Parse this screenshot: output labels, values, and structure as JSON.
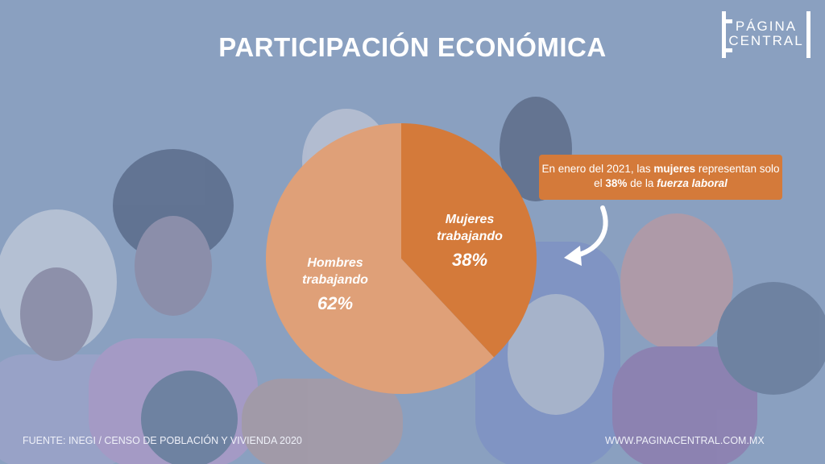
{
  "title": "PARTICIPACIÓN ECONÓMICA",
  "logo": {
    "line1": "PÁGINA",
    "line2": "CENTRAL"
  },
  "callout": {
    "part1": "En enero del 2021, las ",
    "bold1": "mujeres",
    "part2": " representan solo el ",
    "bold2": "38%",
    "part3": " de la ",
    "bolditalic": "fuerza laboral"
  },
  "colors": {
    "background": "#8aa0c0",
    "mujeres": "#d47a3a",
    "hombres": "#dfa078",
    "callout": "#d47a3a"
  },
  "chart_data": {
    "type": "pie",
    "slices": [
      {
        "label_line1": "Mujeres",
        "label_line2": "trabajando",
        "value": 38,
        "value_label": "38%",
        "color": "#d47a3a"
      },
      {
        "label_line1": "Hombres",
        "label_line2": "trabajando",
        "value": 62,
        "value_label": "62%",
        "color": "#dfa078"
      }
    ],
    "start": "top",
    "direction": "clockwise"
  },
  "footer": {
    "source": "FUENTE: INEGI / CENSO DE POBLACIÓN Y VIVIENDA  2020",
    "website": "WWW.PAGINACENTRAL.COM.MX"
  }
}
